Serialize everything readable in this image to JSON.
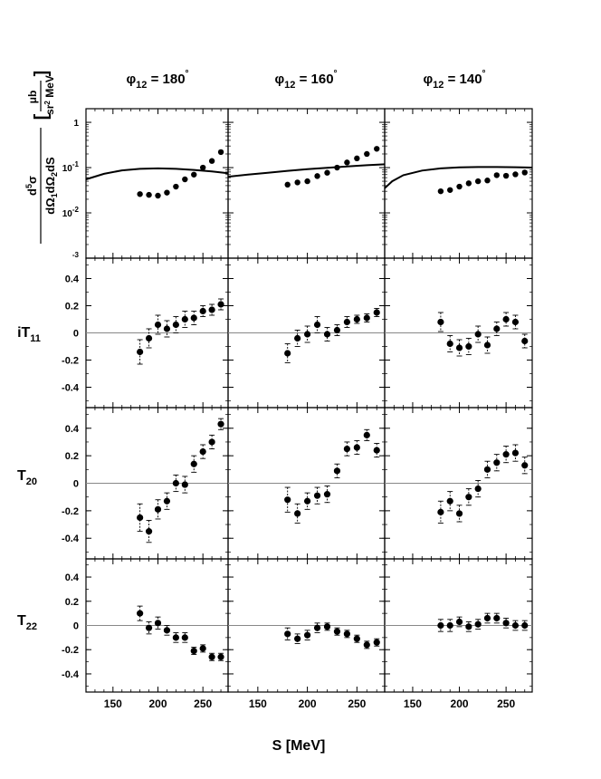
{
  "figure": {
    "column_headers": [
      {
        "phi": "φ",
        "sub": "12",
        "rest": " = 180",
        "deg": "°"
      },
      {
        "phi": "φ",
        "sub": "12",
        "rest": " = 160",
        "deg": "°"
      },
      {
        "phi": "φ",
        "sub": "12",
        "rest": " = 140",
        "deg": "°"
      }
    ],
    "row_labels": [
      {
        "main": "",
        "sub": ""
      },
      {
        "main": "iT",
        "sub": "11"
      },
      {
        "main": "T",
        "sub": "20"
      },
      {
        "main": "T",
        "sub": "22"
      }
    ],
    "cross_section_label": {
      "num_main": "d",
      "num_sup": "5",
      "num_rest": "σ",
      "den_parts": [
        "dΩ",
        "1",
        "dΩ",
        "2",
        "dS"
      ],
      "unit_num": "μb",
      "unit_den_a": "sr",
      "unit_den_sup": "2",
      "unit_den_b": " MeV"
    },
    "x_axis_label": "S [MeV]",
    "x_ticks": [
      "150",
      "200",
      "250"
    ],
    "x_tick_values": [
      150,
      200,
      250
    ],
    "xlim": [
      120,
      278
    ],
    "row0_ticks": [
      {
        "value": 1,
        "label": "1"
      },
      {
        "value": 0.1,
        "base": "10",
        "exp": "-1"
      },
      {
        "value": 0.01,
        "base": "10",
        "exp": "-2"
      },
      {
        "value": 0.001,
        "exp_only": "-3"
      }
    ],
    "row_ticks": [
      "0.4",
      "0.2",
      "0",
      "-0.2",
      "-0.4"
    ],
    "row_tick_values": [
      0.4,
      0.2,
      0,
      -0.2,
      -0.4
    ],
    "ylim_linear": [
      -0.55,
      0.55
    ],
    "ylim_log": [
      0.001,
      2
    ]
  },
  "chart_data": {
    "type": "scatter",
    "xlabel": "S [MeV]",
    "ylabel_rows": [
      "d5σ/dΩ1dΩ2dS [μb/(sr2 MeV)]",
      "iT11",
      "T20",
      "T22"
    ],
    "ylims": [
      [
        0.001,
        2
      ],
      [
        -0.55,
        0.55
      ],
      [
        -0.55,
        0.55
      ],
      [
        -0.55,
        0.55
      ]
    ],
    "y_scale_rows": [
      "log",
      "linear",
      "linear",
      "linear"
    ],
    "x": [
      180,
      190,
      200,
      210,
      220,
      230,
      240,
      250,
      260,
      270
    ],
    "columns": [
      {
        "phi12": 180,
        "cross_section": [
          0.026,
          0.025,
          0.024,
          0.028,
          0.038,
          0.055,
          0.07,
          0.1,
          0.14,
          0.22
        ],
        "cross_section_curve": [
          [
            120,
            0.055
          ],
          [
            140,
            0.073
          ],
          [
            160,
            0.087
          ],
          [
            180,
            0.094
          ],
          [
            200,
            0.096
          ],
          [
            220,
            0.094
          ],
          [
            240,
            0.089
          ],
          [
            260,
            0.082
          ],
          [
            278,
            0.075
          ]
        ],
        "iT11": [
          [
            -0.14,
            0.09
          ],
          [
            -0.04,
            0.07
          ],
          [
            0.06,
            0.07
          ],
          [
            0.03,
            0.06
          ],
          [
            0.06,
            0.06
          ],
          [
            0.1,
            0.06
          ],
          [
            0.11,
            0.05
          ],
          [
            0.16,
            0.04
          ],
          [
            0.17,
            0.04
          ],
          [
            0.21,
            0.04
          ]
        ],
        "T20": [
          [
            -0.25,
            0.1
          ],
          [
            -0.35,
            0.08
          ],
          [
            -0.19,
            0.07
          ],
          [
            -0.13,
            0.06
          ],
          [
            0.0,
            0.06
          ],
          [
            -0.01,
            0.06
          ],
          [
            0.14,
            0.06
          ],
          [
            0.23,
            0.05
          ],
          [
            0.3,
            0.05
          ],
          [
            0.43,
            0.04
          ]
        ],
        "T22": [
          [
            0.1,
            0.06
          ],
          [
            -0.02,
            0.05
          ],
          [
            0.02,
            0.05
          ],
          [
            -0.04,
            0.04
          ],
          [
            -0.1,
            0.04
          ],
          [
            -0.1,
            0.04
          ],
          [
            -0.21,
            0.03
          ],
          [
            -0.19,
            0.03
          ],
          [
            -0.26,
            0.03
          ],
          [
            -0.26,
            0.03
          ]
        ]
      },
      {
        "phi12": 160,
        "cross_section": [
          0.042,
          0.047,
          0.05,
          0.065,
          0.077,
          0.1,
          0.13,
          0.16,
          0.2,
          0.26
        ],
        "cross_section_curve": [
          [
            120,
            0.063
          ],
          [
            140,
            0.07
          ],
          [
            160,
            0.077
          ],
          [
            180,
            0.085
          ],
          [
            200,
            0.092
          ],
          [
            220,
            0.099
          ],
          [
            240,
            0.106
          ],
          [
            260,
            0.113
          ],
          [
            278,
            0.118
          ]
        ],
        "iT11": [
          [
            -0.15,
            0.07
          ],
          [
            -0.04,
            0.06
          ],
          [
            -0.01,
            0.06
          ],
          [
            0.06,
            0.06
          ],
          [
            -0.01,
            0.05
          ],
          [
            0.02,
            0.04
          ],
          [
            0.08,
            0.04
          ],
          [
            0.1,
            0.03
          ],
          [
            0.11,
            0.03
          ],
          [
            0.15,
            0.03
          ]
        ],
        "T20": [
          [
            -0.12,
            0.09
          ],
          [
            -0.22,
            0.07
          ],
          [
            -0.13,
            0.06
          ],
          [
            -0.09,
            0.06
          ],
          [
            -0.08,
            0.06
          ],
          [
            0.09,
            0.05
          ],
          [
            0.25,
            0.05
          ],
          [
            0.26,
            0.05
          ],
          [
            0.35,
            0.04
          ],
          [
            0.24,
            0.05
          ]
        ],
        "T22": [
          [
            -0.07,
            0.05
          ],
          [
            -0.11,
            0.04
          ],
          [
            -0.08,
            0.04
          ],
          [
            -0.02,
            0.04
          ],
          [
            -0.01,
            0.03
          ],
          [
            -0.05,
            0.03
          ],
          [
            -0.07,
            0.03
          ],
          [
            -0.11,
            0.03
          ],
          [
            -0.16,
            0.03
          ],
          [
            -0.14,
            0.03
          ]
        ]
      },
      {
        "phi12": 140,
        "cross_section": [
          0.03,
          0.032,
          0.038,
          0.045,
          0.05,
          0.052,
          0.068,
          0.066,
          0.071,
          0.078
        ],
        "cross_section_curve": [
          [
            120,
            0.035
          ],
          [
            128,
            0.05
          ],
          [
            140,
            0.068
          ],
          [
            160,
            0.086
          ],
          [
            180,
            0.096
          ],
          [
            200,
            0.101
          ],
          [
            220,
            0.103
          ],
          [
            240,
            0.103
          ],
          [
            260,
            0.102
          ],
          [
            278,
            0.1
          ]
        ],
        "iT11": [
          [
            0.08,
            0.07
          ],
          [
            -0.08,
            0.06
          ],
          [
            -0.11,
            0.06
          ],
          [
            -0.1,
            0.06
          ],
          [
            -0.01,
            0.06
          ],
          [
            -0.09,
            0.06
          ],
          [
            0.03,
            0.05
          ],
          [
            0.1,
            0.05
          ],
          [
            0.08,
            0.05
          ],
          [
            -0.06,
            0.05
          ]
        ],
        "T20": [
          [
            -0.21,
            0.08
          ],
          [
            -0.13,
            0.07
          ],
          [
            -0.22,
            0.06
          ],
          [
            -0.1,
            0.06
          ],
          [
            -0.04,
            0.06
          ],
          [
            0.1,
            0.06
          ],
          [
            0.15,
            0.06
          ],
          [
            0.21,
            0.06
          ],
          [
            0.22,
            0.06
          ],
          [
            0.13,
            0.06
          ]
        ],
        "T22": [
          [
            0.0,
            0.05
          ],
          [
            0.0,
            0.05
          ],
          [
            0.03,
            0.04
          ],
          [
            -0.01,
            0.04
          ],
          [
            0.01,
            0.04
          ],
          [
            0.06,
            0.04
          ],
          [
            0.06,
            0.04
          ],
          [
            0.02,
            0.04
          ],
          [
            0.0,
            0.04
          ],
          [
            0.0,
            0.04
          ]
        ]
      }
    ]
  }
}
